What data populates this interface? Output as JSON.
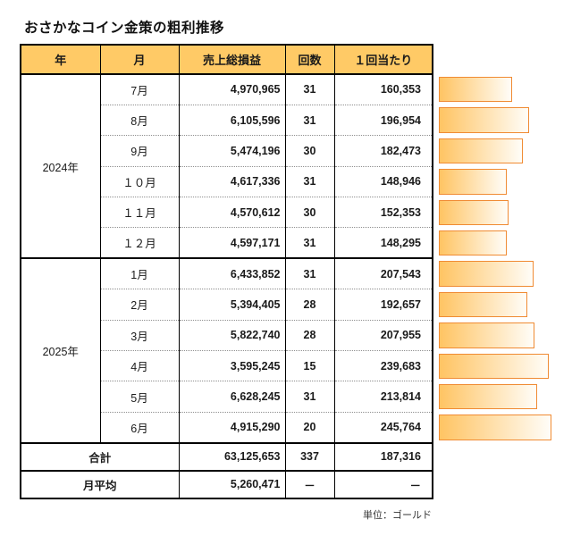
{
  "title": "おさかなコイン金策の粗利推移",
  "unit_note": "単位：ゴールド",
  "table": {
    "columns": [
      "年",
      "月",
      "売上総損益",
      "回数",
      "１回当たり"
    ],
    "groups": [
      {
        "year": "2024年",
        "rows": [
          {
            "month": "7月",
            "gross": "4,970,965",
            "count": "31",
            "per": "160,353"
          },
          {
            "month": "8月",
            "gross": "6,105,596",
            "count": "31",
            "per": "196,954"
          },
          {
            "month": "9月",
            "gross": "5,474,196",
            "count": "30",
            "per": "182,473"
          },
          {
            "month": "１０月",
            "gross": "4,617,336",
            "count": "31",
            "per": "148,946"
          },
          {
            "month": "１１月",
            "gross": "4,570,612",
            "count": "30",
            "per": "152,353"
          },
          {
            "month": "１２月",
            "gross": "4,597,171",
            "count": "31",
            "per": "148,295"
          }
        ]
      },
      {
        "year": "2025年",
        "rows": [
          {
            "month": "1月",
            "gross": "6,433,852",
            "count": "31",
            "per": "207,543"
          },
          {
            "month": "2月",
            "gross": "5,394,405",
            "count": "28",
            "per": "192,657"
          },
          {
            "month": "3月",
            "gross": "5,822,740",
            "count": "28",
            "per": "207,955"
          },
          {
            "month": "4月",
            "gross": "3,595,245",
            "count": "15",
            "per": "239,683"
          },
          {
            "month": "5月",
            "gross": "6,628,245",
            "count": "31",
            "per": "213,814"
          },
          {
            "month": "6月",
            "gross": "4,915,290",
            "count": "20",
            "per": "245,764"
          }
        ]
      }
    ],
    "total": {
      "label": "合計",
      "gross": "63,125,653",
      "count": "337",
      "per": "187,316"
    },
    "average": {
      "label": "月平均",
      "gross": "5,260,471",
      "count": "－",
      "per": "－"
    }
  },
  "chart_data": {
    "type": "bar",
    "orientation": "horizontal",
    "title": "おさかなコイン金策の粗利推移",
    "series_label": "１回当たり",
    "categories": [
      "2024年7月",
      "2024年8月",
      "2024年9月",
      "2024年10月",
      "2024年11月",
      "2024年12月",
      "2025年1月",
      "2025年2月",
      "2025年3月",
      "2025年4月",
      "2025年5月",
      "2025年6月"
    ],
    "values": [
      160353,
      196954,
      182473,
      148946,
      152353,
      148295,
      207543,
      192657,
      207955,
      239683,
      213814,
      245764
    ],
    "xlim": [
      0,
      245764
    ],
    "legend": "off",
    "grid": "off"
  },
  "colors": {
    "header_fill": "#ffca66",
    "bar_border": "#f08b33",
    "bar_fill_start": "#ffc463",
    "bar_fill_end": "#fffdf8",
    "table_border": "#000000",
    "dotted_separator": "#8f8f8f"
  }
}
